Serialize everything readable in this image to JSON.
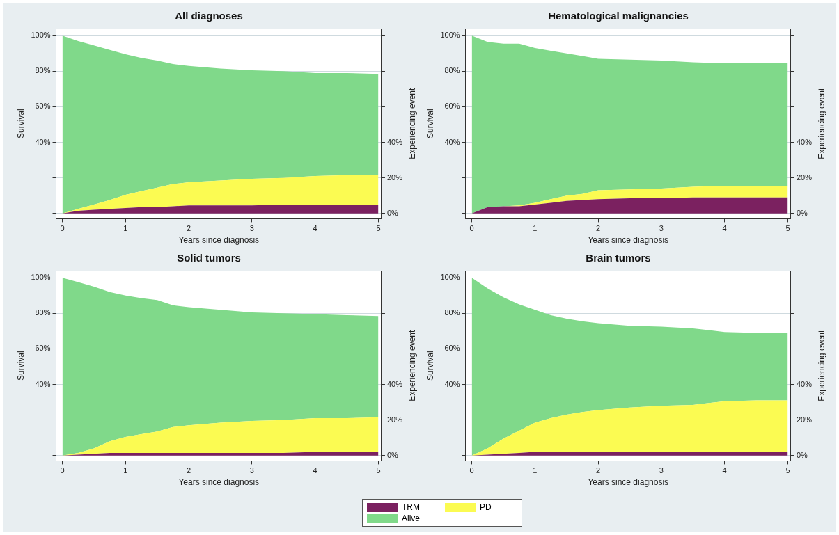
{
  "chart_data": [
    {
      "type": "area",
      "title": "All diagnoses",
      "xlabel": "Years since diagnosis",
      "ylabel": "Survival",
      "y2label": "Experiencing event",
      "stacked": true,
      "grid": "y",
      "legend": "bottom",
      "x": [
        0,
        0.25,
        0.5,
        0.75,
        1,
        1.25,
        1.5,
        1.75,
        2,
        2.5,
        3,
        3.5,
        4,
        4.5,
        5
      ],
      "series": [
        {
          "name": "TRM",
          "color": "#7b2160",
          "values": [
            0,
            1.5,
            2,
            2.5,
            3,
            3.5,
            3.5,
            4,
            4.5,
            4.5,
            4.5,
            5,
            5,
            5,
            5
          ]
        },
        {
          "name": "PD",
          "color": "#fbfb52",
          "values": [
            0,
            1,
            3,
            5,
            7.5,
            9,
            11,
            12.5,
            13,
            14,
            15,
            15,
            16,
            16.5,
            16.5
          ]
        },
        {
          "name": "Alive",
          "color": "#80d98a",
          "values": [
            100,
            94.5,
            89.5,
            84.5,
            79,
            75,
            71.5,
            67.5,
            65.5,
            63,
            61,
            60,
            58,
            57.5,
            57
          ]
        }
      ],
      "xlim": [
        -0.1,
        5.05
      ],
      "xticks": [
        0,
        1,
        2,
        3,
        4,
        5
      ],
      "ylim": [
        -3,
        104
      ],
      "yticks": [
        {
          "value": 0,
          "label": null
        },
        {
          "value": 20,
          "label": null
        },
        {
          "value": 40,
          "label": "40%"
        },
        {
          "value": 60,
          "label": "60%"
        },
        {
          "value": 80,
          "label": "80%"
        },
        {
          "value": 100,
          "label": "100%"
        }
      ],
      "y2lim": [
        -3,
        104
      ],
      "y2ticks": [
        {
          "value": 0,
          "label": "0%"
        },
        {
          "value": 20,
          "label": "20%"
        },
        {
          "value": 40,
          "label": "40%"
        },
        {
          "value": 60,
          "label": null
        },
        {
          "value": 80,
          "label": null
        },
        {
          "value": 100,
          "label": null
        }
      ]
    },
    {
      "type": "area",
      "title": "Hematological malignancies",
      "xlabel": "Years since diagnosis",
      "ylabel": "Survival",
      "y2label": "Experiencing event",
      "stacked": true,
      "grid": "y",
      "legend": "bottom",
      "x": [
        0,
        0.25,
        0.5,
        0.75,
        1,
        1.25,
        1.5,
        1.75,
        2,
        2.5,
        3,
        3.5,
        4,
        4.5,
        5
      ],
      "series": [
        {
          "name": "TRM",
          "color": "#7b2160",
          "values": [
            0,
            3.5,
            4,
            4,
            5,
            6,
            7,
            7.5,
            8,
            8.5,
            8.5,
            9,
            9,
            9,
            9
          ]
        },
        {
          "name": "PD",
          "color": "#fbfb52",
          "values": [
            0,
            0,
            0,
            0.5,
            1,
            2,
            3,
            3.5,
            5,
            5,
            5.5,
            6,
            6.5,
            6.5,
            6.5
          ]
        },
        {
          "name": "Alive",
          "color": "#80d98a",
          "values": [
            100,
            93,
            91.5,
            91,
            87,
            83.5,
            80,
            77.5,
            74,
            73,
            72,
            70,
            69,
            69,
            69
          ]
        }
      ],
      "xlim": [
        -0.1,
        5.05
      ],
      "xticks": [
        0,
        1,
        2,
        3,
        4,
        5
      ],
      "ylim": [
        -3,
        104
      ],
      "yticks": [
        {
          "value": 0,
          "label": null
        },
        {
          "value": 20,
          "label": null
        },
        {
          "value": 40,
          "label": "40%"
        },
        {
          "value": 60,
          "label": "60%"
        },
        {
          "value": 80,
          "label": "80%"
        },
        {
          "value": 100,
          "label": "100%"
        }
      ],
      "y2lim": [
        -3,
        104
      ],
      "y2ticks": [
        {
          "value": 0,
          "label": "0%"
        },
        {
          "value": 20,
          "label": "20%"
        },
        {
          "value": 40,
          "label": "40%"
        },
        {
          "value": 60,
          "label": null
        },
        {
          "value": 80,
          "label": null
        },
        {
          "value": 100,
          "label": null
        }
      ]
    },
    {
      "type": "area",
      "title": "Solid tumors",
      "xlabel": "Years since diagnosis",
      "ylabel": "Survival",
      "y2label": "Experiencing event",
      "stacked": true,
      "grid": "y",
      "legend": "bottom",
      "x": [
        0,
        0.25,
        0.5,
        0.75,
        1,
        1.25,
        1.5,
        1.75,
        2,
        2.5,
        3,
        3.5,
        4,
        4.5,
        5
      ],
      "series": [
        {
          "name": "TRM",
          "color": "#7b2160",
          "values": [
            0,
            0.5,
            1,
            1.5,
            1.5,
            1.5,
            1.5,
            1.5,
            1.5,
            1.5,
            1.5,
            1.5,
            2,
            2,
            2
          ]
        },
        {
          "name": "PD",
          "color": "#fbfb52",
          "values": [
            0,
            1,
            3,
            6.5,
            9,
            10.5,
            12,
            14.5,
            15.5,
            17,
            18,
            18.5,
            19,
            19,
            19.5
          ]
        },
        {
          "name": "Alive",
          "color": "#80d98a",
          "values": [
            100,
            96,
            91,
            84,
            79.5,
            76.5,
            74,
            68.5,
            66.5,
            63.5,
            61,
            60,
            58.5,
            58,
            57
          ]
        }
      ],
      "xlim": [
        -0.1,
        5.05
      ],
      "xticks": [
        0,
        1,
        2,
        3,
        4,
        5
      ],
      "ylim": [
        -3,
        104
      ],
      "yticks": [
        {
          "value": 0,
          "label": null
        },
        {
          "value": 20,
          "label": null
        },
        {
          "value": 40,
          "label": "40%"
        },
        {
          "value": 60,
          "label": "60%"
        },
        {
          "value": 80,
          "label": "80%"
        },
        {
          "value": 100,
          "label": "100%"
        }
      ],
      "y2lim": [
        -3,
        104
      ],
      "y2ticks": [
        {
          "value": 0,
          "label": "0%"
        },
        {
          "value": 20,
          "label": "20%"
        },
        {
          "value": 40,
          "label": "40%"
        },
        {
          "value": 60,
          "label": null
        },
        {
          "value": 80,
          "label": null
        },
        {
          "value": 100,
          "label": null
        }
      ]
    },
    {
      "type": "area",
      "title": "Brain tumors",
      "xlabel": "Years since diagnosis",
      "ylabel": "Survival",
      "y2label": "Experiencing event",
      "stacked": true,
      "grid": "y",
      "legend": "bottom",
      "x": [
        0,
        0.25,
        0.5,
        0.75,
        1,
        1.25,
        1.5,
        1.75,
        2,
        2.5,
        3,
        3.5,
        4,
        4.5,
        5
      ],
      "series": [
        {
          "name": "TRM",
          "color": "#7b2160",
          "values": [
            0,
            0.5,
            1,
            1.5,
            2,
            2,
            2,
            2,
            2,
            2,
            2,
            2,
            2,
            2,
            2
          ]
        },
        {
          "name": "PD",
          "color": "#fbfb52",
          "values": [
            0,
            3.5,
            8.5,
            12.5,
            16.5,
            19,
            21,
            22.5,
            23.5,
            25,
            26,
            26.5,
            28.5,
            29,
            29
          ]
        },
        {
          "name": "Alive",
          "color": "#80d98a",
          "values": [
            100,
            90,
            79.5,
            71,
            63.5,
            58,
            54,
            51,
            49,
            46,
            44.5,
            43,
            39,
            38,
            38
          ]
        }
      ],
      "xlim": [
        -0.1,
        5.05
      ],
      "xticks": [
        0,
        1,
        2,
        3,
        4,
        5
      ],
      "ylim": [
        -3,
        104
      ],
      "yticks": [
        {
          "value": 0,
          "label": null
        },
        {
          "value": 20,
          "label": null
        },
        {
          "value": 40,
          "label": "40%"
        },
        {
          "value": 60,
          "label": "60%"
        },
        {
          "value": 80,
          "label": "80%"
        },
        {
          "value": 100,
          "label": "100%"
        }
      ],
      "y2lim": [
        -3,
        104
      ],
      "y2ticks": [
        {
          "value": 0,
          "label": "0%"
        },
        {
          "value": 20,
          "label": "20%"
        },
        {
          "value": 40,
          "label": "40%"
        },
        {
          "value": 60,
          "label": null
        },
        {
          "value": 80,
          "label": null
        },
        {
          "value": 100,
          "label": null
        }
      ]
    }
  ]
}
